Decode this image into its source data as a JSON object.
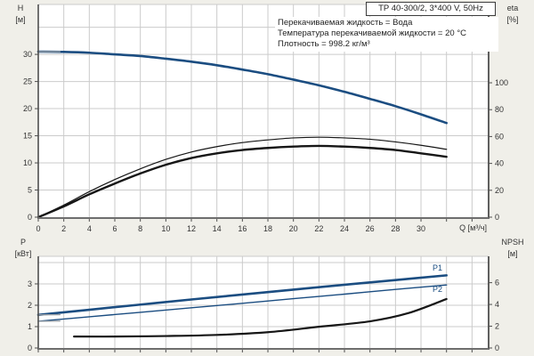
{
  "header": {
    "title": "TP 40-300/2, 3*400 V, 50Hz",
    "info_lines": [
      "Перекачиваемая жидкость = Вода",
      "Температура перекачиваемой жидкости = 20 °C",
      "Плотность = 998.2 кг/м³"
    ]
  },
  "labels": {
    "h_top": "H",
    "h_unit": "[м]",
    "eta_top": "eta",
    "eta_unit": "[%]",
    "p_top": "P",
    "p_unit": "[кВт]",
    "npsh_top": "NPSH",
    "npsh_unit": "[м]",
    "q_unit": "Q [м³/ч]",
    "p1": "P1",
    "p2": "P2"
  },
  "colors": {
    "background": "#f0efe9",
    "plot_background": "#ffffff",
    "grid": "#cbcbcb",
    "axis": "#4f4f4f",
    "bottom_axis": "#6e6e6e",
    "tick_text": "#333333",
    "curve_blue": "#1b4d81",
    "curve_black": "#161616",
    "lead_gray": "#9aa0a6"
  },
  "chart_data": [
    {
      "id": "top",
      "type": "line",
      "title": "",
      "x": {
        "label": "Q [м³/ч]",
        "min": 0,
        "max": 35.3,
        "grid": [
          2,
          4,
          6,
          8,
          10,
          12,
          14,
          16,
          18,
          20,
          22,
          24,
          26,
          28,
          30,
          32,
          34
        ],
        "ticks": [
          0,
          2,
          4,
          6,
          8,
          10,
          12,
          14,
          16,
          18,
          20,
          22,
          24,
          26,
          28,
          30,
          32,
          34
        ],
        "tick_labels": [
          0,
          2,
          4,
          6,
          8,
          10,
          12,
          14,
          16,
          18,
          20,
          22,
          24,
          26,
          28,
          30
        ]
      },
      "left": {
        "label": "H [м]",
        "min": 0,
        "max": 39.2,
        "grid": [
          5,
          10,
          15,
          20,
          25,
          30,
          35
        ],
        "ticks": [
          0,
          5,
          10,
          15,
          20,
          25,
          30
        ],
        "tick_labels": [
          0,
          5,
          10,
          15,
          20,
          25,
          30
        ]
      },
      "right": {
        "label": "eta [%]",
        "min": 0,
        "max": 158.3,
        "grid": [],
        "ticks": [
          0,
          20,
          40,
          60,
          80,
          100
        ],
        "tick_labels": [
          0,
          20,
          40,
          60,
          80,
          100
        ]
      },
      "series": [
        {
          "name": "head-curve",
          "axis": "left",
          "color": "#1b4d81",
          "width": 2.6,
          "points": [
            [
              0,
              30.5
            ],
            [
              2,
              30.45
            ],
            [
              4,
              30.3
            ],
            [
              6,
              30.0
            ],
            [
              8,
              29.7
            ],
            [
              10,
              29.2
            ],
            [
              12,
              28.65
            ],
            [
              14,
              28.0
            ],
            [
              16,
              27.2
            ],
            [
              18,
              26.35
            ],
            [
              20,
              25.35
            ],
            [
              22,
              24.3
            ],
            [
              24,
              23.1
            ],
            [
              26,
              21.8
            ],
            [
              28,
              20.45
            ],
            [
              30,
              18.95
            ],
            [
              32,
              17.35
            ]
          ]
        },
        {
          "name": "head-curve-lead",
          "axis": "left",
          "color": "#9aa0a6",
          "width": 1.4,
          "points": [
            [
              0,
              30.5
            ],
            [
              1.7,
              30.47
            ]
          ]
        },
        {
          "name": "eta1-curve",
          "axis": "right",
          "color": "#161616",
          "width": 1.2,
          "points": [
            [
              0,
              0
            ],
            [
              2,
              9
            ],
            [
              4,
              19
            ],
            [
              6,
              28
            ],
            [
              8,
              36
            ],
            [
              10,
              43
            ],
            [
              12,
              48.5
            ],
            [
              14,
              52.5
            ],
            [
              16,
              55.5
            ],
            [
              18,
              57.5
            ],
            [
              20,
              59
            ],
            [
              22,
              59.5
            ],
            [
              24,
              59
            ],
            [
              26,
              58
            ],
            [
              28,
              56
            ],
            [
              30,
              53.5
            ],
            [
              32,
              50.5
            ]
          ]
        },
        {
          "name": "eta2-curve",
          "axis": "right",
          "color": "#161616",
          "width": 2.4,
          "points": [
            [
              0,
              0
            ],
            [
              2,
              8
            ],
            [
              4,
              17
            ],
            [
              6,
              25
            ],
            [
              8,
              32.5
            ],
            [
              10,
              39
            ],
            [
              12,
              44
            ],
            [
              14,
              47.5
            ],
            [
              16,
              50
            ],
            [
              18,
              51.5
            ],
            [
              20,
              52.5
            ],
            [
              22,
              53
            ],
            [
              24,
              52.5
            ],
            [
              26,
              51.5
            ],
            [
              28,
              50
            ],
            [
              30,
              47.5
            ],
            [
              32,
              44.9
            ]
          ]
        }
      ]
    },
    {
      "id": "bottom",
      "type": "line",
      "title": "",
      "x": {
        "label": "",
        "min": 0,
        "max": 35.3,
        "grid": [
          2,
          4,
          6,
          8,
          10,
          12,
          14,
          16,
          18,
          20,
          22,
          24,
          26,
          28,
          30,
          32,
          34
        ],
        "ticks": [
          0,
          2,
          4,
          6,
          8,
          10,
          12,
          14,
          16,
          18,
          20,
          22,
          24,
          26,
          28,
          30,
          32,
          34
        ],
        "tick_labels": []
      },
      "left": {
        "label": "P [кВт]",
        "min": 0,
        "max": 4.29,
        "grid": [
          1,
          2,
          3,
          4
        ],
        "ticks": [
          0,
          1,
          2,
          3
        ],
        "tick_labels": [
          0,
          1,
          2,
          3
        ]
      },
      "right": {
        "label": "NPSH [м]",
        "min": 0,
        "max": 8.42,
        "grid": [],
        "ticks": [
          0,
          2,
          4,
          6
        ],
        "tick_labels": [
          0,
          2,
          4,
          6
        ]
      },
      "series": [
        {
          "name": "p1-curve",
          "axis": "left",
          "color": "#1b4d81",
          "width": 2.6,
          "points": [
            [
              0,
              1.55
            ],
            [
              4,
              1.79
            ],
            [
              8,
              2.03
            ],
            [
              12,
              2.27
            ],
            [
              16,
              2.5
            ],
            [
              20,
              2.73
            ],
            [
              24,
              2.96
            ],
            [
              28,
              3.18
            ],
            [
              32,
              3.4
            ]
          ]
        },
        {
          "name": "p1-curve-lead",
          "axis": "left",
          "color": "#9aa0a6",
          "width": 1.4,
          "points": [
            [
              0,
              1.55
            ],
            [
              1.7,
              1.56
            ]
          ]
        },
        {
          "name": "p2-curve",
          "axis": "left",
          "color": "#1b4d81",
          "width": 1.4,
          "points": [
            [
              0,
              1.25
            ],
            [
              4,
              1.46
            ],
            [
              8,
              1.67
            ],
            [
              12,
              1.88
            ],
            [
              16,
              2.09
            ],
            [
              20,
              2.31
            ],
            [
              24,
              2.52
            ],
            [
              28,
              2.74
            ],
            [
              32,
              2.95
            ]
          ]
        },
        {
          "name": "p2-curve-lead",
          "axis": "left",
          "color": "#9aa0a6",
          "width": 1.2,
          "points": [
            [
              0,
              1.25
            ],
            [
              1.7,
              1.26
            ]
          ]
        },
        {
          "name": "npsh-curve",
          "axis": "right",
          "color": "#161616",
          "width": 2.2,
          "points": [
            [
              2.8,
              1.05
            ],
            [
              6,
              1.05
            ],
            [
              10,
              1.1
            ],
            [
              14,
              1.2
            ],
            [
              18,
              1.45
            ],
            [
              22,
              1.95
            ],
            [
              26,
              2.45
            ],
            [
              29,
              3.2
            ],
            [
              32,
              4.5
            ]
          ]
        }
      ]
    }
  ]
}
